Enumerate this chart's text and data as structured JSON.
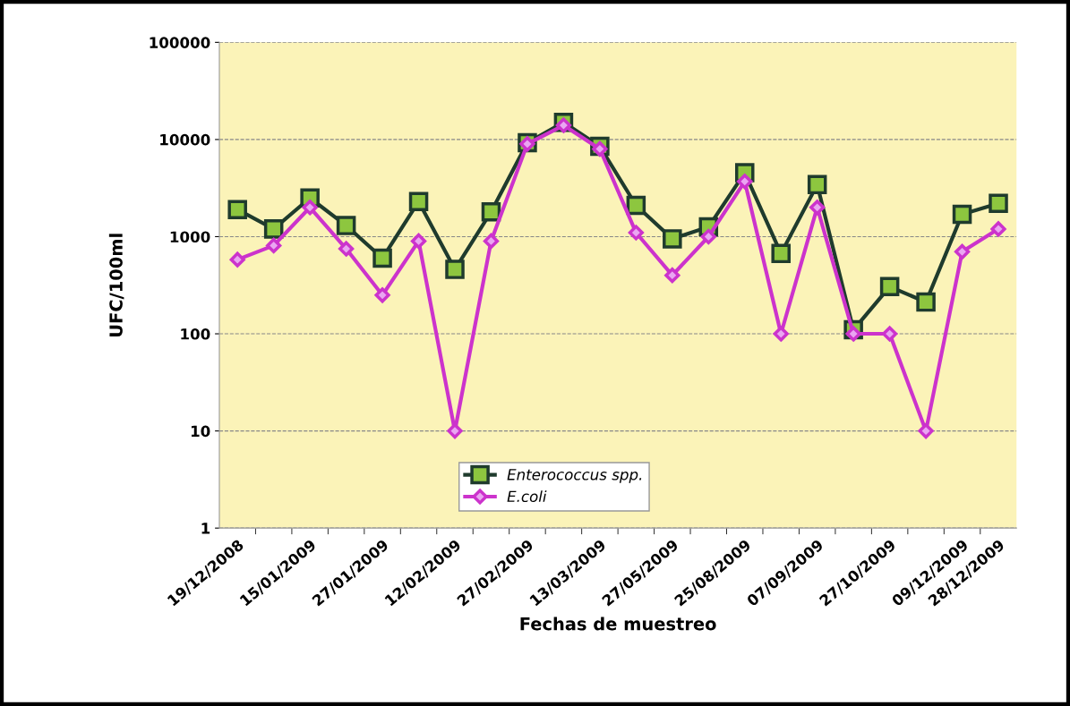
{
  "chart_data": {
    "type": "line",
    "xlabel": "Fechas de muestreo",
    "ylabel": "UFC/100ml",
    "categories": [
      "19/12/2008",
      null,
      "15/01/2009",
      null,
      "27/01/2009",
      null,
      "12/02/2009",
      null,
      "27/02/2009",
      null,
      "13/03/2009",
      null,
      "27/05/2009",
      null,
      "25/08/2009",
      null,
      "07/09/2009",
      null,
      "27/10/2009",
      null,
      "09/12/2009",
      "28/12/2009"
    ],
    "series": [
      {
        "name": "Enterococcus spp.",
        "color": "#1f3b2d",
        "marker": "square",
        "values": [
          1900,
          1200,
          2500,
          1300,
          600,
          2300,
          460,
          1800,
          9250,
          15000,
          8500,
          2100,
          950,
          1260,
          4550,
          670,
          3430,
          110,
          306,
          212,
          1700,
          2200
        ]
      },
      {
        "name": "E.coli",
        "color": "#cc33cc",
        "marker": "diamond",
        "values": [
          580,
          810,
          2000,
          750,
          250,
          900,
          10,
          900,
          9000,
          14000,
          8000,
          1100,
          400,
          1000,
          3700,
          100,
          2000,
          100,
          100,
          10,
          700,
          1200
        ]
      }
    ],
    "log": "y",
    "ylim": [
      1,
      100000
    ],
    "yticks": [
      1,
      10,
      100,
      1000,
      10000,
      100000
    ],
    "grid": "y",
    "legend": "bottom"
  }
}
